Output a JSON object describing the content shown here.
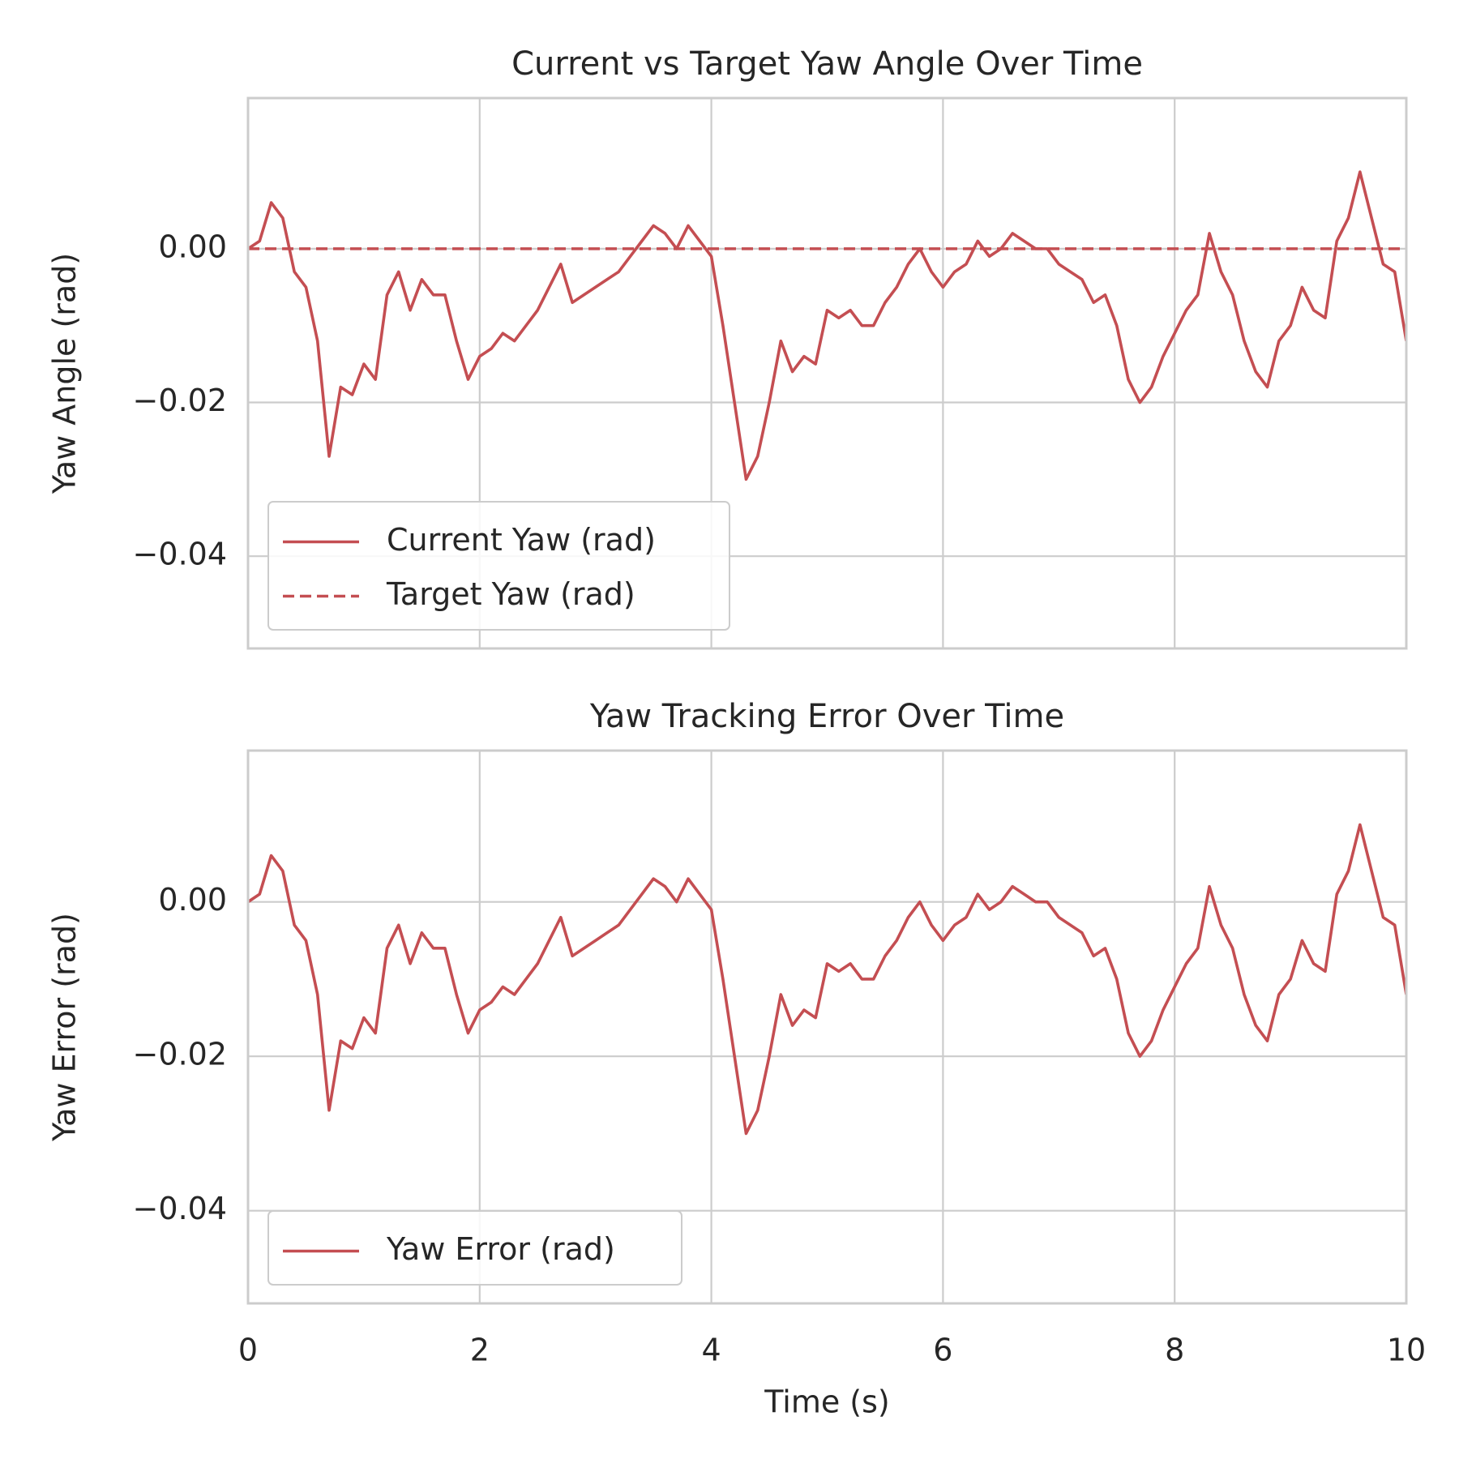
{
  "chart_data": [
    {
      "type": "line",
      "title": "Current vs Target Yaw Angle Over Time",
      "ylabel": "Yaw Angle (rad)",
      "xlim": [
        0,
        10
      ],
      "xticks": [
        0,
        2,
        4,
        6,
        8,
        10
      ],
      "ylim": [
        -0.052,
        0.0196
      ],
      "yticks": [
        {
          "value": -0.04,
          "label": "−0.04"
        },
        {
          "value": -0.02,
          "label": "−0.02"
        },
        {
          "value": 0,
          "label": "0.00"
        }
      ],
      "grid": true,
      "legend": "lower left",
      "x": [
        0,
        0.1,
        0.2,
        0.3,
        0.4,
        0.5,
        0.6,
        0.7,
        0.8,
        0.9,
        1,
        1.1,
        1.2,
        1.3,
        1.4,
        1.5,
        1.6,
        1.7,
        1.8,
        1.9,
        2,
        2.1,
        2.2,
        2.3,
        2.4,
        2.5,
        2.6,
        2.7,
        2.8,
        2.9,
        3,
        3.1,
        3.2,
        3.3,
        3.4,
        3.5,
        3.6,
        3.7,
        3.8,
        3.9,
        4,
        4.1,
        4.2,
        4.3,
        4.4,
        4.5,
        4.6,
        4.7,
        4.8,
        4.9,
        5,
        5.1,
        5.2,
        5.3,
        5.4,
        5.5,
        5.6,
        5.7,
        5.8,
        5.9,
        6,
        6.1,
        6.2,
        6.3,
        6.4,
        6.5,
        6.6,
        6.7,
        6.8,
        6.9,
        7,
        7.1,
        7.2,
        7.3,
        7.4,
        7.5,
        7.6,
        7.7,
        7.8,
        7.9,
        8,
        8.1,
        8.2,
        8.3,
        8.4,
        8.5,
        8.6,
        8.7,
        8.8,
        8.9,
        9,
        9.1,
        9.2,
        9.3,
        9.4,
        9.5,
        9.6,
        9.7,
        9.8,
        9.9,
        10
      ],
      "series": [
        {
          "name": "Current Yaw (rad)",
          "color": "#c44e52",
          "linestyle": "solid",
          "values": [
            0,
            0.001,
            0.006,
            0.004,
            -0.003,
            -0.005,
            -0.012,
            -0.027,
            -0.018,
            -0.019,
            -0.015,
            -0.017,
            -0.006,
            -0.003,
            -0.008,
            -0.004,
            -0.006,
            -0.006,
            -0.012,
            -0.017,
            -0.014,
            -0.013,
            -0.011,
            -0.012,
            -0.01,
            -0.008,
            -0.005,
            -0.002,
            -0.007,
            -0.006,
            -0.005,
            -0.004,
            -0.003,
            -0.001,
            0.001,
            0.003,
            0.002,
            0,
            0.003,
            0.001,
            -0.001,
            -0.01,
            -0.02,
            -0.03,
            -0.027,
            -0.02,
            -0.012,
            -0.016,
            -0.014,
            -0.015,
            -0.008,
            -0.009,
            -0.008,
            -0.01,
            -0.01,
            -0.007,
            -0.005,
            -0.002,
            0,
            -0.003,
            -0.005,
            -0.003,
            -0.002,
            0.001,
            -0.001,
            0,
            0.002,
            0.001,
            0,
            0,
            -0.002,
            -0.003,
            -0.004,
            -0.007,
            -0.006,
            -0.01,
            -0.017,
            -0.02,
            -0.018,
            -0.014,
            -0.011,
            -0.008,
            -0.006,
            0.002,
            -0.003,
            -0.006,
            -0.012,
            -0.016,
            -0.018,
            -0.012,
            -0.01,
            -0.005,
            -0.008,
            -0.009,
            0.001,
            0.004,
            0.01,
            0.004,
            -0.002,
            -0.003,
            -0.012
          ]
        },
        {
          "name": "Target Yaw (rad)",
          "color": "#c44e52",
          "linestyle": "dashed",
          "values": [
            0,
            0,
            0,
            0,
            0,
            0,
            0,
            0,
            0,
            0,
            0,
            0,
            0,
            0,
            0,
            0,
            0,
            0,
            0,
            0,
            0,
            0,
            0,
            0,
            0,
            0,
            0,
            0,
            0,
            0,
            0,
            0,
            0,
            0,
            0,
            0,
            0,
            0,
            0,
            0,
            0,
            0,
            0,
            0,
            0,
            0,
            0,
            0,
            0,
            0,
            0,
            0,
            0,
            0,
            0,
            0,
            0,
            0,
            0,
            0,
            0,
            0,
            0,
            0,
            0,
            0,
            0,
            0,
            0,
            0,
            0,
            0,
            0,
            0,
            0,
            0,
            0,
            0,
            0,
            0,
            0,
            0,
            0,
            0,
            0,
            0,
            0,
            0,
            0,
            0,
            0,
            0,
            0,
            0,
            0,
            0,
            0,
            0,
            0,
            0,
            0
          ]
        }
      ]
    },
    {
      "type": "line",
      "title": "Yaw Tracking Error Over Time",
      "ylabel": "Yaw Error (rad)",
      "xlabel": "Time (s)",
      "xlim": [
        0,
        10
      ],
      "xticks": [
        0,
        2,
        4,
        6,
        8,
        10
      ],
      "ylim": [
        -0.052,
        0.0196
      ],
      "yticks": [
        {
          "value": -0.04,
          "label": "−0.04"
        },
        {
          "value": -0.02,
          "label": "−0.02"
        },
        {
          "value": 0,
          "label": "0.00"
        }
      ],
      "grid": true,
      "legend": "lower left",
      "x": [
        0,
        0.1,
        0.2,
        0.3,
        0.4,
        0.5,
        0.6,
        0.7,
        0.8,
        0.9,
        1,
        1.1,
        1.2,
        1.3,
        1.4,
        1.5,
        1.6,
        1.7,
        1.8,
        1.9,
        2,
        2.1,
        2.2,
        2.3,
        2.4,
        2.5,
        2.6,
        2.7,
        2.8,
        2.9,
        3,
        3.1,
        3.2,
        3.3,
        3.4,
        3.5,
        3.6,
        3.7,
        3.8,
        3.9,
        4,
        4.1,
        4.2,
        4.3,
        4.4,
        4.5,
        4.6,
        4.7,
        4.8,
        4.9,
        5,
        5.1,
        5.2,
        5.3,
        5.4,
        5.5,
        5.6,
        5.7,
        5.8,
        5.9,
        6,
        6.1,
        6.2,
        6.3,
        6.4,
        6.5,
        6.6,
        6.7,
        6.8,
        6.9,
        7,
        7.1,
        7.2,
        7.3,
        7.4,
        7.5,
        7.6,
        7.7,
        7.8,
        7.9,
        8,
        8.1,
        8.2,
        8.3,
        8.4,
        8.5,
        8.6,
        8.7,
        8.8,
        8.9,
        9,
        9.1,
        9.2,
        9.3,
        9.4,
        9.5,
        9.6,
        9.7,
        9.8,
        9.9,
        10
      ],
      "series": [
        {
          "name": "Yaw Error (rad)",
          "color": "#c44e52",
          "linestyle": "solid",
          "values": [
            0,
            0.001,
            0.006,
            0.004,
            -0.003,
            -0.005,
            -0.012,
            -0.027,
            -0.018,
            -0.019,
            -0.015,
            -0.017,
            -0.006,
            -0.003,
            -0.008,
            -0.004,
            -0.006,
            -0.006,
            -0.012,
            -0.017,
            -0.014,
            -0.013,
            -0.011,
            -0.012,
            -0.01,
            -0.008,
            -0.005,
            -0.002,
            -0.007,
            -0.006,
            -0.005,
            -0.004,
            -0.003,
            -0.001,
            0.001,
            0.003,
            0.002,
            0,
            0.003,
            0.001,
            -0.001,
            -0.01,
            -0.02,
            -0.03,
            -0.027,
            -0.02,
            -0.012,
            -0.016,
            -0.014,
            -0.015,
            -0.008,
            -0.009,
            -0.008,
            -0.01,
            -0.01,
            -0.007,
            -0.005,
            -0.002,
            0,
            -0.003,
            -0.005,
            -0.003,
            -0.002,
            0.001,
            -0.001,
            0,
            0.002,
            0.001,
            0,
            0,
            -0.002,
            -0.003,
            -0.004,
            -0.007,
            -0.006,
            -0.01,
            -0.017,
            -0.02,
            -0.018,
            -0.014,
            -0.011,
            -0.008,
            -0.006,
            0.002,
            -0.003,
            -0.006,
            -0.012,
            -0.016,
            -0.018,
            -0.012,
            -0.01,
            -0.005,
            -0.008,
            -0.009,
            0.001,
            0.004,
            0.01,
            0.004,
            -0.002,
            -0.003,
            -0.012
          ]
        }
      ]
    }
  ]
}
